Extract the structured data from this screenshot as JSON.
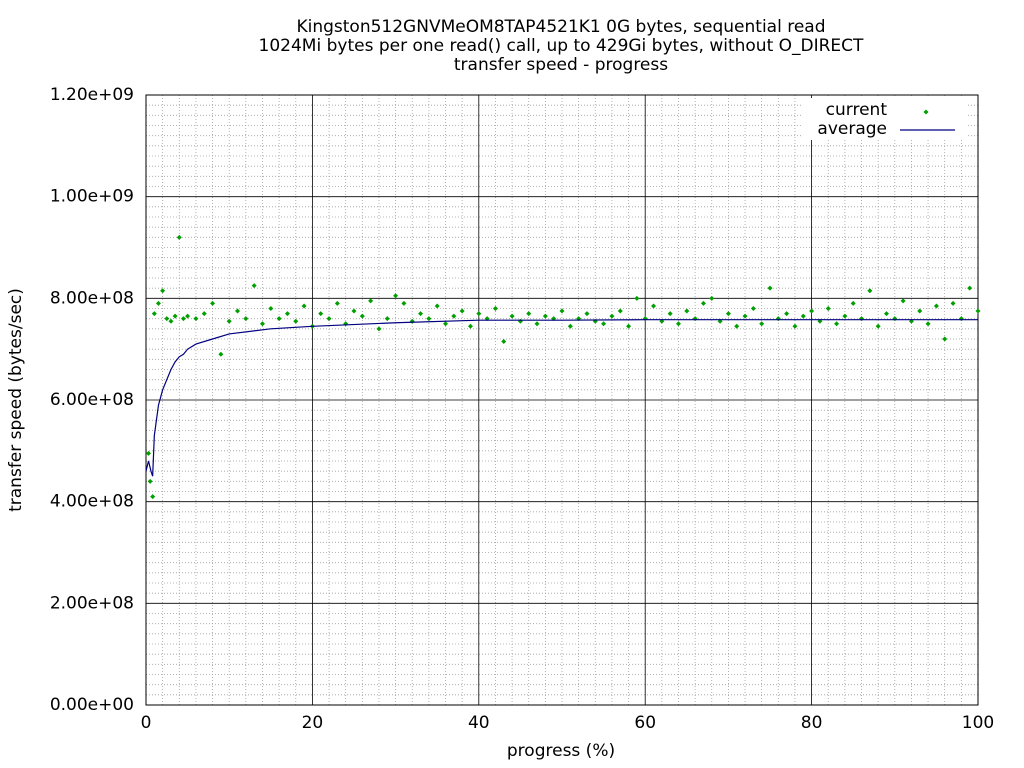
{
  "chart_data": {
    "type": "scatter",
    "title": [
      "Kingston512GNVMeOM8TAP4521K1 0G bytes, sequential read",
      "1024Mi bytes per one read() call, up to 429Gi bytes, without O_DIRECT",
      "transfer speed - progress"
    ],
    "x_label": "progress (%)",
    "y_label": "transfer speed (bytes/sec)",
    "xlim": [
      0,
      100
    ],
    "ylim": [
      0,
      1200000000.0
    ],
    "xticks": [
      0,
      20,
      40,
      60,
      80,
      100
    ],
    "yticks": [
      {
        "value": 0,
        "label": "0.00e+00"
      },
      {
        "value": 200000000.0,
        "label": "2.00e+08"
      },
      {
        "value": 400000000.0,
        "label": "4.00e+08"
      },
      {
        "value": 600000000.0,
        "label": "6.00e+08"
      },
      {
        "value": 800000000.0,
        "label": "8.00e+08"
      },
      {
        "value": 1000000000.0,
        "label": "1.00e+09"
      },
      {
        "value": 1200000000.0,
        "label": "1.20e+09"
      }
    ],
    "grid": true,
    "minor_grid": true,
    "minor_divisions": 10,
    "legend": "top-right",
    "series": [
      {
        "name": "current",
        "color": "#00a000",
        "style": "points",
        "x": [
          0.3,
          0.5,
          0.8,
          1,
          1.5,
          2,
          2.5,
          3,
          3.5,
          4,
          4.5,
          5,
          6,
          7,
          8,
          9,
          10,
          11,
          12,
          13,
          14,
          15,
          16,
          17,
          18,
          19,
          20,
          21,
          22,
          23,
          24,
          25,
          26,
          27,
          28,
          29,
          30,
          31,
          32,
          33,
          34,
          35,
          36,
          37,
          38,
          39,
          40,
          41,
          42,
          43,
          44,
          45,
          46,
          47,
          48,
          49,
          50,
          51,
          52,
          53,
          54,
          55,
          56,
          57,
          58,
          59,
          60,
          61,
          62,
          63,
          64,
          65,
          66,
          67,
          68,
          69,
          70,
          71,
          72,
          73,
          74,
          75,
          76,
          77,
          78,
          79,
          80,
          81,
          82,
          83,
          84,
          85,
          86,
          87,
          88,
          89,
          90,
          91,
          92,
          93,
          94,
          95,
          96,
          97,
          98,
          99,
          100
        ],
        "values": [
          495000000.0,
          440000000.0,
          410000000.0,
          770000000.0,
          790000000.0,
          815000000.0,
          760000000.0,
          755000000.0,
          765000000.0,
          920000000.0,
          760000000.0,
          765000000.0,
          760000000.0,
          770000000.0,
          790000000.0,
          690000000.0,
          755000000.0,
          775000000.0,
          760000000.0,
          825000000.0,
          750000000.0,
          780000000.0,
          760000000.0,
          770000000.0,
          755000000.0,
          785000000.0,
          745000000.0,
          770000000.0,
          760000000.0,
          790000000.0,
          750000000.0,
          775000000.0,
          765000000.0,
          795000000.0,
          740000000.0,
          760000000.0,
          805000000.0,
          790000000.0,
          755000000.0,
          770000000.0,
          760000000.0,
          785000000.0,
          750000000.0,
          765000000.0,
          775000000.0,
          745000000.0,
          770000000.0,
          760000000.0,
          780000000.0,
          715000000.0,
          765000000.0,
          755000000.0,
          770000000.0,
          750000000.0,
          765000000.0,
          760000000.0,
          775000000.0,
          745000000.0,
          760000000.0,
          770000000.0,
          755000000.0,
          750000000.0,
          765000000.0,
          775000000.0,
          745000000.0,
          800000000.0,
          760000000.0,
          785000000.0,
          755000000.0,
          770000000.0,
          750000000.0,
          775000000.0,
          760000000.0,
          790000000.0,
          800000000.0,
          755000000.0,
          770000000.0,
          745000000.0,
          765000000.0,
          780000000.0,
          750000000.0,
          820000000.0,
          760000000.0,
          770000000.0,
          745000000.0,
          765000000.0,
          775000000.0,
          755000000.0,
          780000000.0,
          750000000.0,
          765000000.0,
          790000000.0,
          760000000.0,
          815000000.0,
          745000000.0,
          770000000.0,
          760000000.0,
          795000000.0,
          755000000.0,
          775000000.0,
          750000000.0,
          785000000.0,
          720000000.0,
          790000000.0,
          760000000.0,
          820000000.0,
          775000000.0
        ]
      },
      {
        "name": "average",
        "color": "#000080",
        "style": "line",
        "x": [
          0,
          0.3,
          0.6,
          0.8,
          1,
          1.5,
          2,
          2.5,
          3,
          3.5,
          4,
          4.5,
          5,
          6,
          8,
          10,
          15,
          20,
          30,
          40,
          50,
          60,
          70,
          80,
          90,
          100
        ],
        "values": [
          460000000.0,
          480000000.0,
          460000000.0,
          450000000.0,
          530000000.0,
          590000000.0,
          620000000.0,
          640000000.0,
          660000000.0,
          675000000.0,
          685000000.0,
          690000000.0,
          700000000.0,
          710000000.0,
          720000000.0,
          730000000.0,
          740000000.0,
          745000000.0,
          752000000.0,
          757000000.0,
          757000000.0,
          758000000.0,
          758000000.0,
          758000000.0,
          758000000.0,
          758000000.0
        ]
      }
    ]
  }
}
